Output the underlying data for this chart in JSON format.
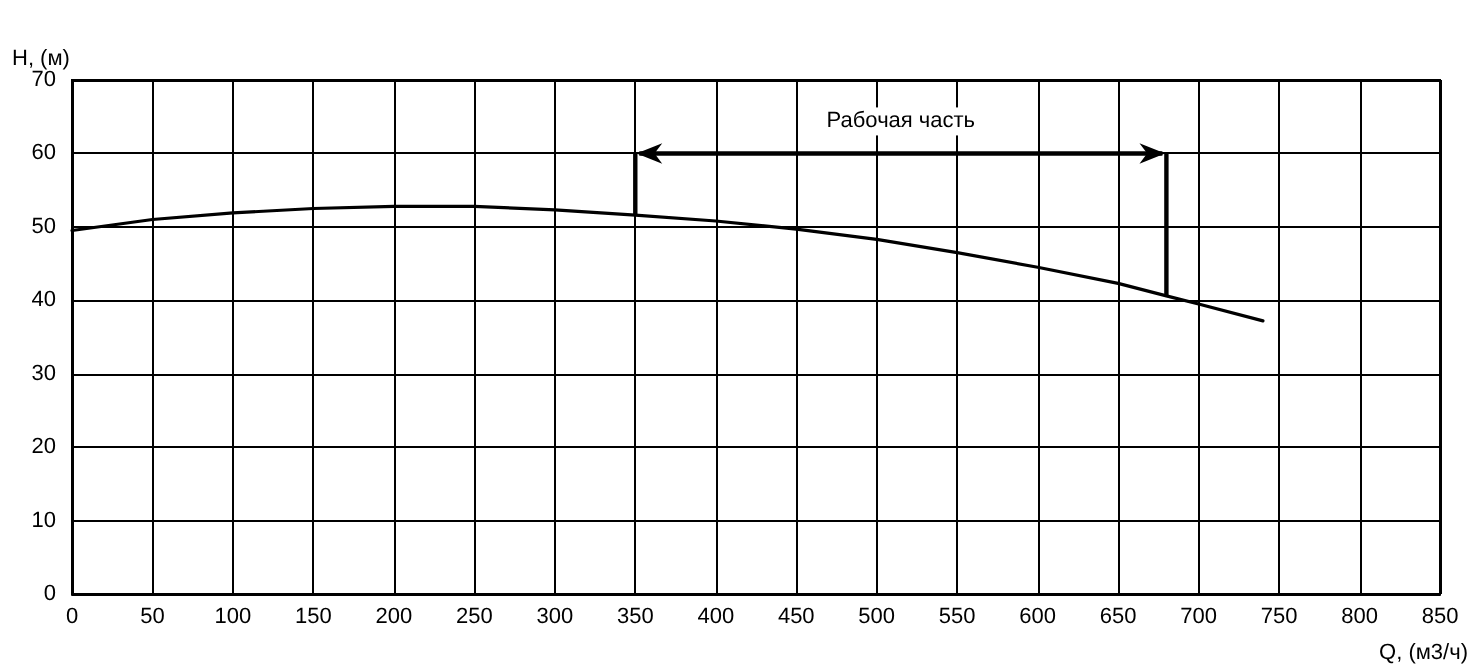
{
  "chart_data": {
    "type": "line",
    "xlabel": "Q, (м3/ч)",
    "ylabel": "H, (м)",
    "x": [
      0,
      50,
      100,
      150,
      200,
      250,
      300,
      350,
      400,
      450,
      500,
      550,
      600,
      650,
      680,
      700,
      740
    ],
    "series": [
      {
        "color": "#000000",
        "values": [
          49.5,
          51,
          51.9,
          52.5,
          52.8,
          52.8,
          52.3,
          51.6,
          50.8,
          49.7,
          48.3,
          46.5,
          44.5,
          42.3,
          40.6,
          39.5,
          37.2
        ]
      }
    ],
    "xlim": [
      0,
      850
    ],
    "xticks": [
      0,
      50,
      100,
      150,
      200,
      250,
      300,
      350,
      400,
      450,
      500,
      550,
      600,
      650,
      700,
      750,
      800,
      850
    ],
    "ylim": [
      0,
      70
    ],
    "yticks": [
      0,
      10,
      20,
      30,
      40,
      50,
      60,
      70
    ],
    "ref_lines": [
      {
        "axis": "x",
        "value": 350,
        "color": "#000000"
      },
      {
        "axis": "x",
        "value": 680,
        "color": "#000000"
      }
    ],
    "annotations": [
      "Рабочая часть"
    ],
    "grid": true,
    "marker": "none",
    "line_style": "solid"
  }
}
